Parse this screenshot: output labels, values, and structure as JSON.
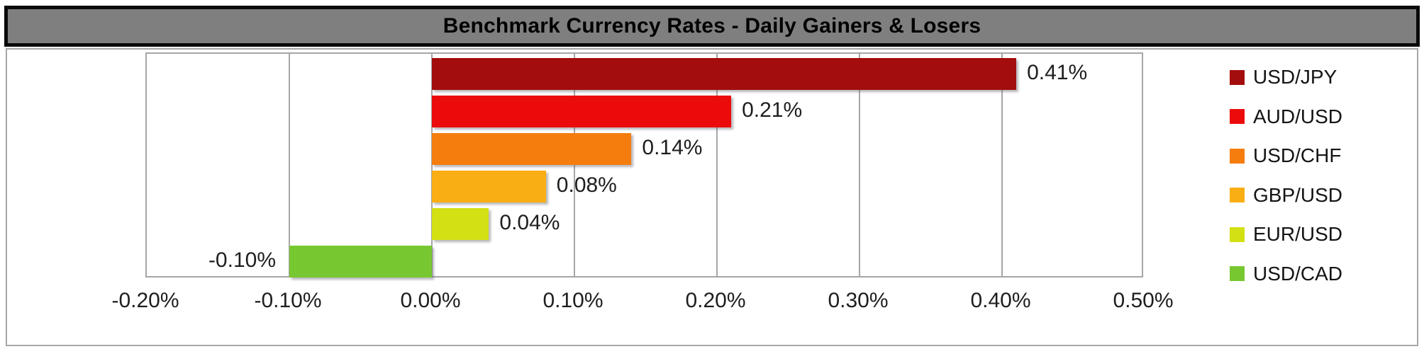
{
  "chart_data": {
    "type": "bar",
    "orientation": "horizontal",
    "title": "Benchmark Currency Rates - Daily Gainers & Losers",
    "categories": [
      "USD/JPY",
      "AUD/USD",
      "USD/CHF",
      "GBP/USD",
      "EUR/USD",
      "USD/CAD"
    ],
    "values": [
      0.41,
      0.21,
      0.14,
      0.08,
      0.04,
      -0.1
    ],
    "value_labels": [
      "0.41%",
      "0.21%",
      "0.14%",
      "0.08%",
      "0.04%",
      "-0.10%"
    ],
    "bar_colors": [
      "#A30D0D",
      "#EC0B0B",
      "#F57D0D",
      "#F9AE13",
      "#D3E013",
      "#77C830"
    ],
    "xlim": [
      -0.2,
      0.5
    ],
    "x_tick_labels": [
      "-0.20%",
      "-0.10%",
      "0.00%",
      "0.10%",
      "0.20%",
      "0.30%",
      "0.40%",
      "0.50%"
    ],
    "grid": true,
    "legend_position": "right"
  },
  "style": {
    "title_bg": "#7F7F7F",
    "title_border": "#0A0A0A",
    "title_text": "#000000",
    "frame_border": "#A6A6A6",
    "grid_color": "#A6A6A6",
    "label_text": "#1E1E1E",
    "background": "#FFFFFF"
  }
}
